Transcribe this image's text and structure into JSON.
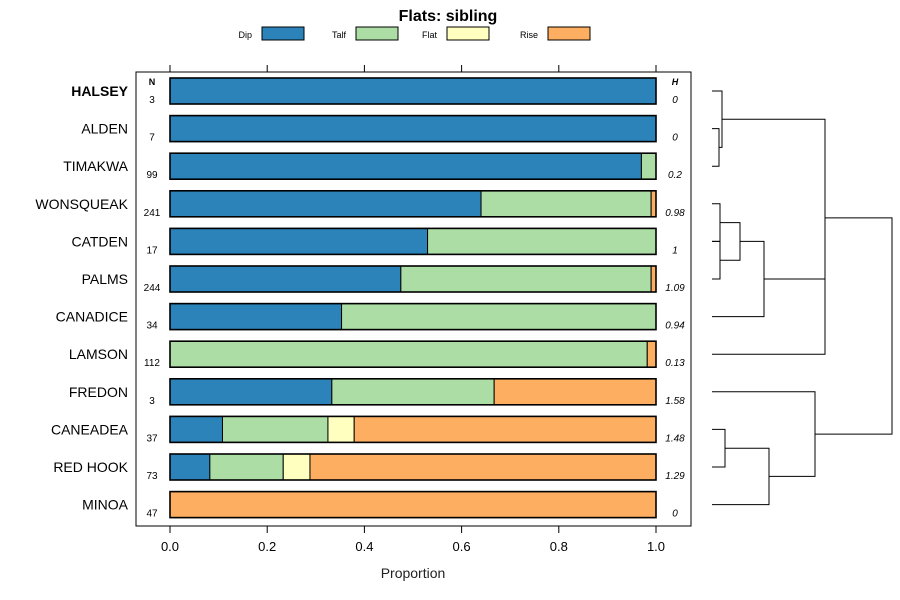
{
  "chart_data": {
    "type": "bar",
    "title": "Flats: sibling",
    "xlabel": "Proportion",
    "xlim": [
      0,
      1
    ],
    "x_ticks": [
      "0.0",
      "0.2",
      "0.4",
      "0.6",
      "0.8",
      "1.0"
    ],
    "n_header": "N",
    "h_header": "H",
    "legend": [
      {
        "name": "Dip",
        "color": "#2b83ba"
      },
      {
        "name": "Talf",
        "color": "#abdda4"
      },
      {
        "name": "Flat",
        "color": "#ffffbf"
      },
      {
        "name": "Rise",
        "color": "#fdae61"
      }
    ],
    "categories": [
      "HALSEY",
      "ALDEN",
      "TIMAKWA",
      "WONSQUEAK",
      "CATDEN",
      "PALMS",
      "CANADICE",
      "LAMSON",
      "FREDON",
      "CANEADEA",
      "RED HOOK",
      "MINOA"
    ],
    "bold_category": "HALSEY",
    "n_values": [
      "3",
      "7",
      "99",
      "241",
      "17",
      "244",
      "34",
      "112",
      "3",
      "37",
      "73",
      "47"
    ],
    "h_values": [
      "0",
      "0",
      "0.2",
      "0.98",
      "1",
      "1.09",
      "0.94",
      "0.13",
      "1.58",
      "1.48",
      "1.29",
      "0"
    ],
    "series": [
      {
        "name": "Dip",
        "values": [
          1.0,
          1.0,
          0.97,
          0.64,
          0.53,
          0.475,
          0.353,
          0.0,
          0.333,
          0.108,
          0.082,
          0.0
        ]
      },
      {
        "name": "Talf",
        "values": [
          0.0,
          0.0,
          0.03,
          0.35,
          0.47,
          0.515,
          0.647,
          0.982,
          0.334,
          0.217,
          0.151,
          0.0
        ]
      },
      {
        "name": "Flat",
        "values": [
          0.0,
          0.0,
          0.0,
          0.0,
          0.0,
          0.0,
          0.0,
          0.0,
          0.0,
          0.054,
          0.055,
          0.0
        ]
      },
      {
        "name": "Rise",
        "values": [
          0.0,
          0.0,
          0.0,
          0.01,
          0.0,
          0.01,
          0.0,
          0.018,
          0.333,
          0.621,
          0.712,
          1.0
        ]
      }
    ],
    "dendrogram": {
      "type": "hierarchical-clustering",
      "leaf_order": [
        "HALSEY",
        "ALDEN",
        "TIMAKWA",
        "WONSQUEAK",
        "CATDEN",
        "PALMS",
        "CANADICE",
        "LAMSON",
        "FREDON",
        "CANEADEA",
        "RED HOOK",
        "MINOA"
      ],
      "merges": [
        [
          1,
          2,
          0.02
        ],
        [
          0,
          "m0",
          0.03
        ],
        [
          3,
          4,
          0.0
        ],
        [
          4,
          5,
          0.04
        ],
        [
          "m2",
          "m3",
          0.05
        ],
        [
          "m4",
          6,
          0.2
        ],
        [
          "m5",
          7,
          0.3
        ],
        [
          9,
          10,
          0.04
        ],
        [
          "m7",
          11,
          0.2
        ],
        [
          8,
          "m8",
          0.3
        ],
        [
          "m1",
          "m6",
          0.4
        ],
        [
          "m10",
          "m9",
          0.6
        ]
      ]
    }
  }
}
